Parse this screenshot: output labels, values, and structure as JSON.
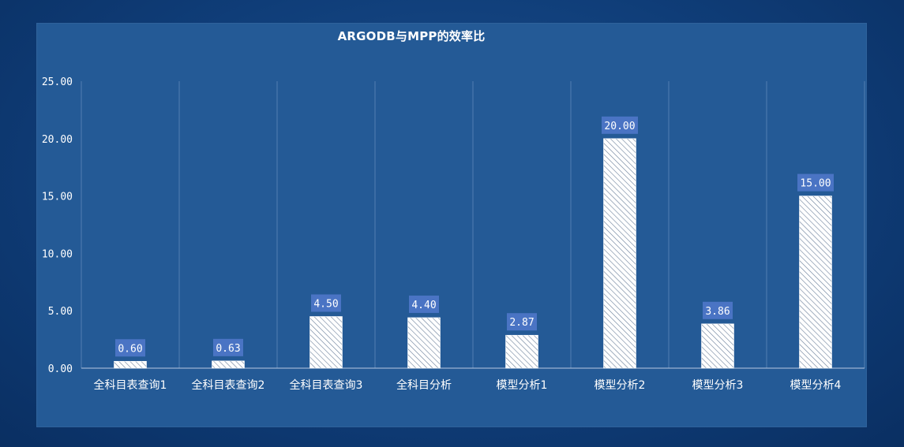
{
  "chart_data": {
    "type": "bar",
    "title": "ARGODB与MPP的效率比",
    "categories": [
      "全科目表查询1",
      "全科目表查询2",
      "全科目表查询3",
      "全科目分析",
      "模型分析1",
      "模型分析2",
      "模型分析3",
      "模型分析4"
    ],
    "values": [
      0.6,
      0.63,
      4.5,
      4.4,
      2.87,
      20.0,
      3.86,
      15.0
    ],
    "value_labels": [
      "0.60",
      "0.63",
      "4.50",
      "4.40",
      "2.87",
      "20.00",
      "3.86",
      "15.00"
    ],
    "yticks": [
      0,
      5,
      10,
      15,
      20,
      25
    ],
    "ytick_labels": [
      "0.00",
      "5.00",
      "10.00",
      "15.00",
      "20.00",
      "25.00"
    ],
    "ylim": [
      0,
      25
    ],
    "xlabel": "",
    "ylabel": "",
    "grid": "vertical",
    "bar_fill": "white diagonal hatch",
    "label_box_color": "#4a74c4"
  }
}
